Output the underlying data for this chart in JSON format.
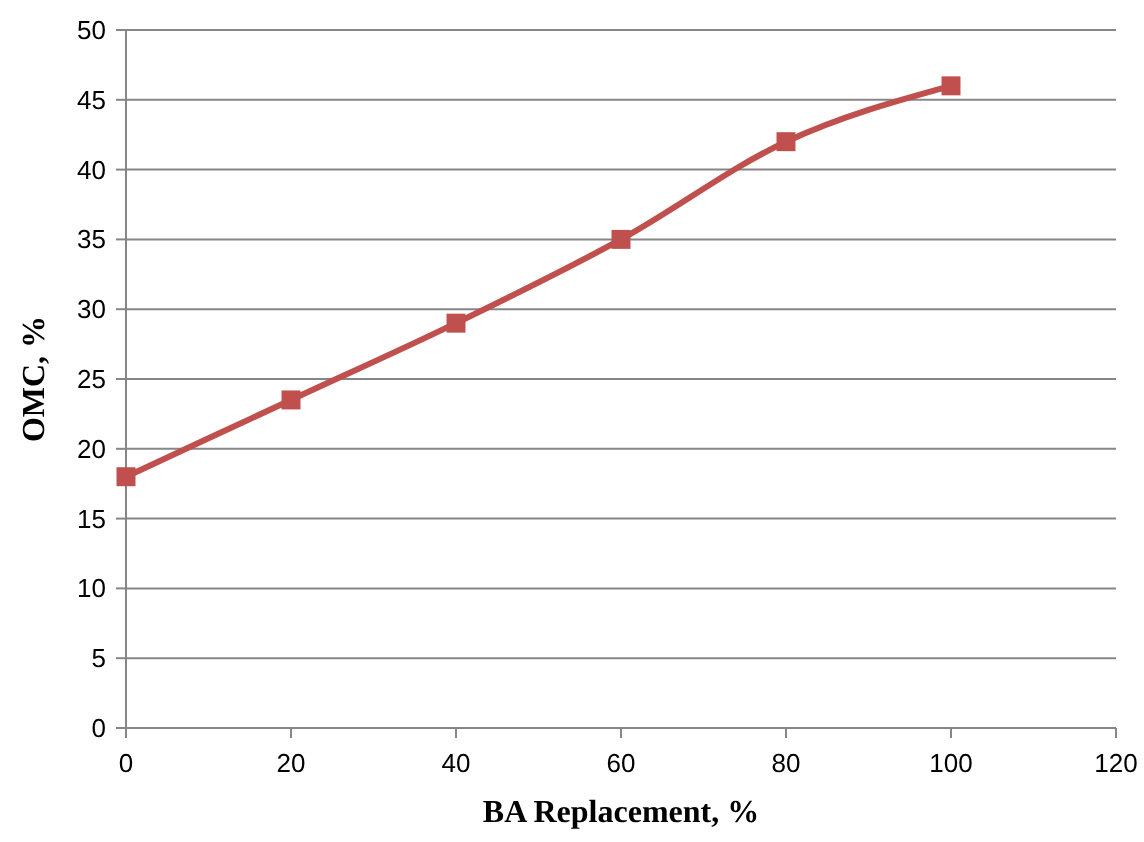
{
  "chart_data": {
    "type": "line",
    "xlabel": "BA Replacement, %",
    "ylabel": "OMC, %",
    "x": [
      0,
      20,
      40,
      60,
      80,
      100
    ],
    "series": [
      {
        "color": "#c0504d",
        "values": [
          18,
          23.5,
          29,
          35,
          42,
          46
        ]
      }
    ],
    "xlim": [
      0,
      120
    ],
    "xticks": [
      0,
      20,
      40,
      60,
      80,
      100,
      120
    ],
    "ylim": [
      0,
      50
    ],
    "yticks": [
      0,
      5,
      10,
      15,
      20,
      25,
      30,
      35,
      40,
      45,
      50
    ],
    "grid": "y",
    "marker": "square",
    "line_style": "solid"
  }
}
